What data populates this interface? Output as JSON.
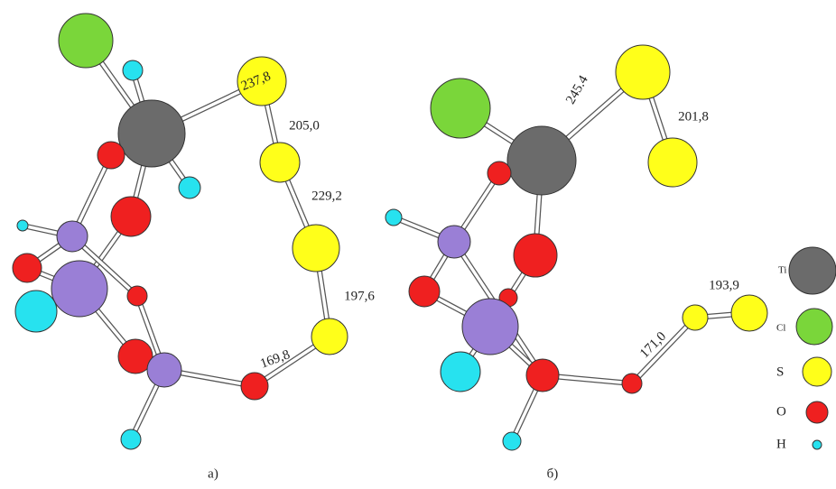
{
  "panels": [
    {
      "label": "а)",
      "bond_labels": [
        "237,8",
        "205,0",
        "229,2",
        "197,6",
        "169,8"
      ]
    },
    {
      "label": "б)",
      "bond_labels": [
        "245.4",
        "201,8",
        "193,9",
        "171,0"
      ]
    }
  ],
  "legend": [
    "Ti",
    "Cl",
    "S",
    "O",
    "H"
  ]
}
